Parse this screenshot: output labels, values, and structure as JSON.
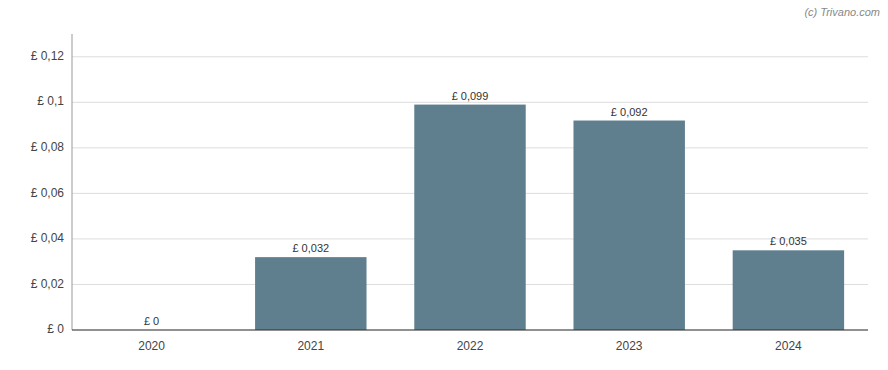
{
  "chart_data": {
    "type": "bar",
    "annotation": "(c) Trivano.com",
    "categories": [
      "2020",
      "2021",
      "2022",
      "2023",
      "2024"
    ],
    "values": [
      0.0,
      0.032,
      0.099,
      0.092,
      0.035
    ],
    "value_labels": [
      "£ 0",
      "£ 0,032",
      "£ 0,099",
      "£ 0,092",
      "£ 0,035"
    ],
    "data_labels": true,
    "color": "#5f7f8f",
    "ylim": [
      0,
      0.13
    ],
    "yticks": [
      {
        "value": 0,
        "label": "£ 0"
      },
      {
        "value": 0.02,
        "label": "£ 0,02"
      },
      {
        "value": 0.04,
        "label": "£ 0,04"
      },
      {
        "value": 0.06,
        "label": "£ 0,06"
      },
      {
        "value": 0.08,
        "label": "£ 0,08"
      },
      {
        "value": 0.1,
        "label": "£ 0,1"
      },
      {
        "value": 0.12,
        "label": "£ 0,12"
      }
    ],
    "grid": true
  }
}
